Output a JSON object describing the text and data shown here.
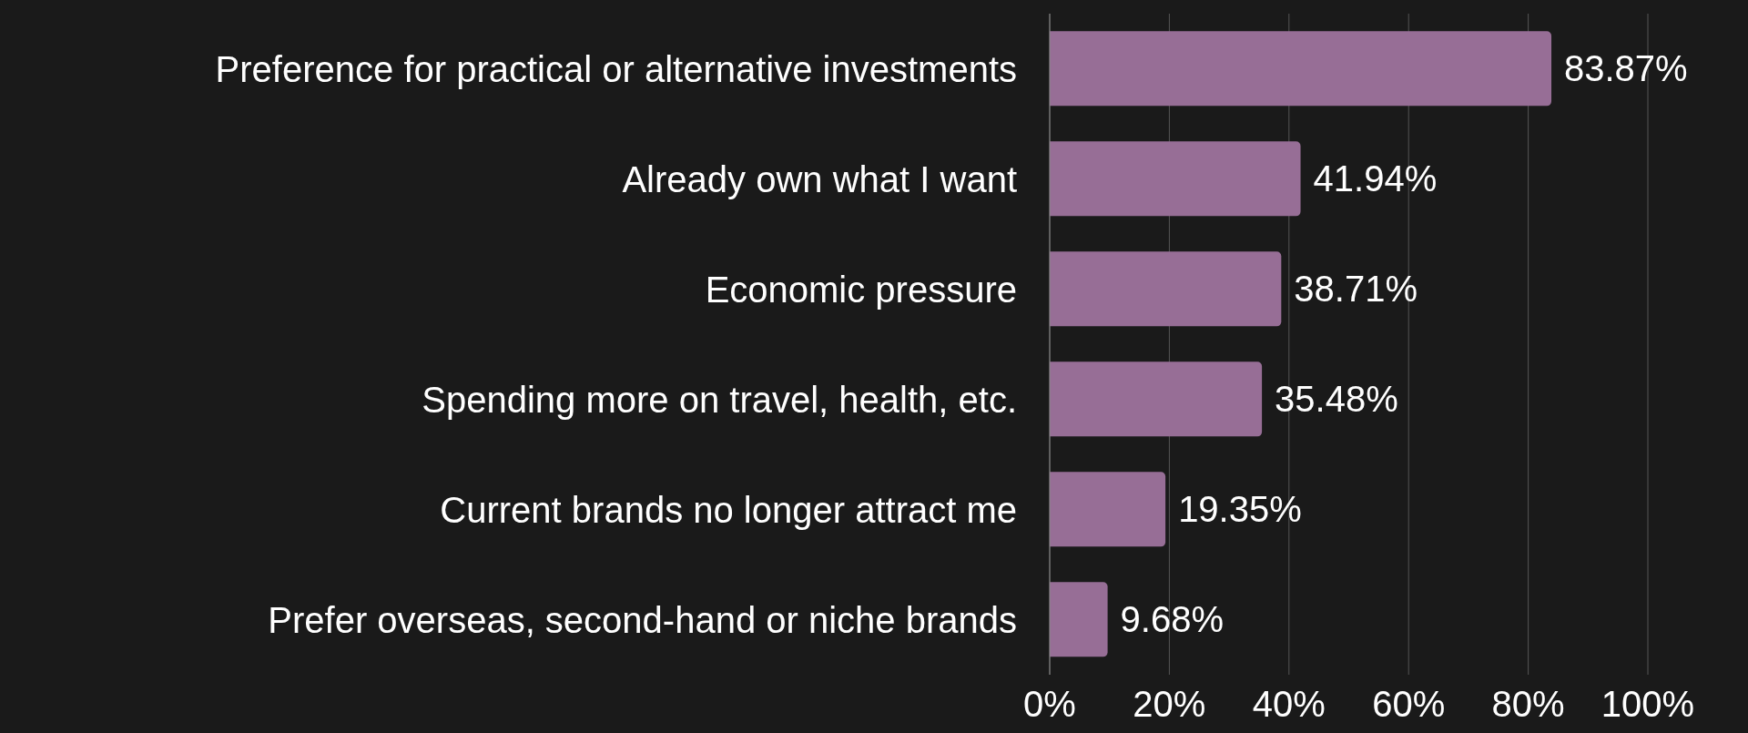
{
  "chart_data": {
    "type": "bar",
    "orientation": "horizontal",
    "categories": [
      "Preference for practical or alternative investments",
      "Already own what I want",
      "Economic pressure",
      "Spending more on travel, health, etc.",
      "Current brands no longer attract me",
      "Prefer overseas, second-hand or niche brands"
    ],
    "values": [
      83.87,
      41.94,
      38.71,
      35.48,
      19.35,
      9.68
    ],
    "value_labels": [
      "83.87%",
      "41.94%",
      "38.71%",
      "35.48%",
      "19.35%",
      "9.68%"
    ],
    "color": "#976e96",
    "xlim": [
      0,
      100
    ],
    "xticks": [
      {
        "value": 0,
        "label": "0%"
      },
      {
        "value": 20,
        "label": "20%"
      },
      {
        "value": 40,
        "label": "40%"
      },
      {
        "value": 60,
        "label": "60%"
      },
      {
        "value": 80,
        "label": "80%"
      },
      {
        "value": 100,
        "label": "100%"
      }
    ],
    "grid": "x",
    "legend": false
  }
}
